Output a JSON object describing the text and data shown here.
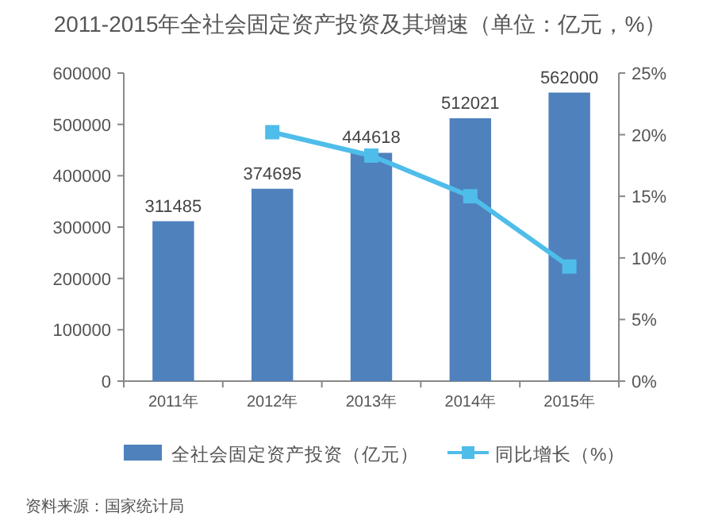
{
  "chart_data": {
    "type": "bar",
    "title": "2011-2015年全社会固定资产投资及其增速（单位：亿元，%）",
    "categories": [
      "2011年",
      "2012年",
      "2013年",
      "2014年",
      "2015年"
    ],
    "series": [
      {
        "name": "全社会固定资产投资（亿元）",
        "color": "#4f81bd",
        "values": [
          311485,
          374695,
          444618,
          512021,
          562000
        ],
        "value_labels": [
          "311485",
          "374695",
          "444618",
          "512021",
          "562000"
        ]
      },
      {
        "name": "同比增长（%）",
        "type": "line",
        "axis": "y2",
        "color": "#4fbde9",
        "marker": "square",
        "values": [
          null,
          20.2,
          18.3,
          15.0,
          9.3
        ]
      }
    ],
    "ylim": [
      0,
      600000
    ],
    "yticks": [
      0,
      100000,
      200000,
      300000,
      400000,
      500000,
      600000
    ],
    "y2lim": [
      0,
      25
    ],
    "y2ticks": [
      {
        "value": 0,
        "label": "0%"
      },
      {
        "value": 5,
        "label": "5%"
      },
      {
        "value": 10,
        "label": "10%"
      },
      {
        "value": 15,
        "label": "15%"
      },
      {
        "value": 20,
        "label": "20%"
      },
      {
        "value": 25,
        "label": "25%"
      }
    ],
    "grid": false,
    "legend": "bottom",
    "annotations": [
      "资料来源：国家统计局"
    ]
  }
}
